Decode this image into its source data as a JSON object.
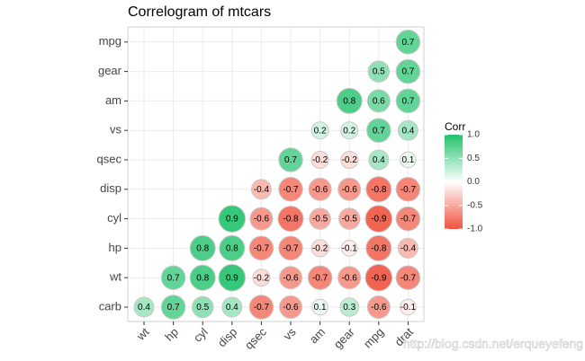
{
  "chart_data": {
    "type": "correlogram",
    "title": "Correlogram of mtcars",
    "x_categories": [
      "wt",
      "hp",
      "cyl",
      "disp",
      "qsec",
      "vs",
      "am",
      "gear",
      "mpg",
      "drat"
    ],
    "y_categories": [
      "carb",
      "wt",
      "hp",
      "cyl",
      "disp",
      "qsec",
      "vs",
      "am",
      "gear",
      "mpg"
    ],
    "values": [
      [
        0.4,
        0.7,
        0.5,
        0.4,
        -0.7,
        -0.6,
        0.1,
        0.3,
        -0.6,
        -0.1
      ],
      [
        null,
        0.7,
        0.8,
        0.9,
        -0.2,
        -0.6,
        -0.7,
        -0.6,
        -0.9,
        -0.7
      ],
      [
        null,
        null,
        0.8,
        0.8,
        -0.7,
        -0.7,
        -0.2,
        -0.1,
        -0.8,
        -0.4
      ],
      [
        null,
        null,
        null,
        0.9,
        -0.6,
        -0.8,
        -0.5,
        -0.5,
        -0.9,
        -0.7
      ],
      [
        null,
        null,
        null,
        null,
        -0.4,
        -0.7,
        -0.6,
        -0.6,
        -0.8,
        -0.7
      ],
      [
        null,
        null,
        null,
        null,
        null,
        0.7,
        -0.2,
        -0.2,
        0.4,
        0.1
      ],
      [
        null,
        null,
        null,
        null,
        null,
        null,
        0.2,
        0.2,
        0.7,
        0.4
      ],
      [
        null,
        null,
        null,
        null,
        null,
        null,
        null,
        0.8,
        0.6,
        0.7
      ],
      [
        null,
        null,
        null,
        null,
        null,
        null,
        null,
        null,
        0.5,
        0.7
      ],
      [
        null,
        null,
        null,
        null,
        null,
        null,
        null,
        null,
        null,
        0.7
      ]
    ],
    "colors": {
      "low": "#f0533f",
      "mid": "#ffffff",
      "high": "#1fc26b"
    },
    "legend": {
      "title": "Corr",
      "lim": [
        -1,
        1
      ],
      "ticks": [
        {
          "value": 1,
          "label": "1.0"
        },
        0.5,
        {
          "value": 0,
          "label": "0.0"
        },
        -0.5,
        {
          "value": -1,
          "label": "-1.0"
        }
      ]
    },
    "grid": true,
    "watermark": "http://blog.csdn.net/erqueyefeng"
  }
}
